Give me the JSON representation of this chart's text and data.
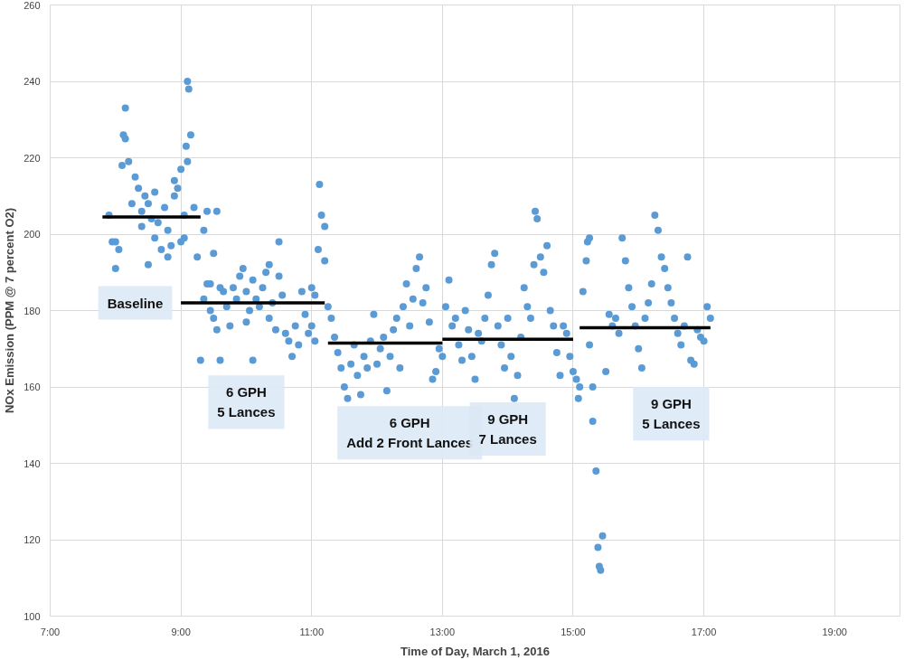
{
  "chart_data": {
    "type": "scatter",
    "xlabel": "Time of Day, March 1, 2016",
    "ylabel": "NOx Emission (PPM @ 7 percent O2)",
    "xlim": [
      7,
      20
    ],
    "ylim": [
      100,
      260
    ],
    "xticks": [
      {
        "value": 7,
        "label": "7:00"
      },
      {
        "value": 9,
        "label": "9:00"
      },
      {
        "value": 11,
        "label": "11:00"
      },
      {
        "value": 13,
        "label": "13:00"
      },
      {
        "value": 15,
        "label": "15:00"
      },
      {
        "value": 17,
        "label": "17:00"
      },
      {
        "value": 19,
        "label": "19:00"
      }
    ],
    "yticks": [
      100,
      120,
      140,
      160,
      180,
      200,
      220,
      240,
      260
    ],
    "grid": true,
    "series": [
      {
        "marker": "circle",
        "color": "#5b9bd5",
        "x": [
          7.9,
          7.95,
          8.0,
          8.0,
          8.05,
          8.1,
          8.12,
          8.15,
          8.15,
          8.2,
          8.25,
          8.3,
          8.35,
          8.4,
          8.4,
          8.45,
          8.5,
          8.5,
          8.55,
          8.6,
          8.6,
          8.65,
          8.7,
          8.75,
          8.8,
          8.8,
          8.85,
          8.9,
          8.9,
          8.95,
          9.0,
          9.0,
          9.05,
          9.05,
          9.08,
          9.1,
          9.1,
          9.12,
          9.15,
          9.2,
          9.25,
          9.3,
          9.35,
          9.4,
          9.45,
          9.5,
          9.55,
          9.6,
          9.35,
          9.4,
          9.45,
          9.5,
          9.55,
          9.6,
          9.65,
          9.7,
          9.75,
          9.8,
          9.85,
          9.9,
          9.95,
          10.0,
          10.0,
          10.05,
          10.1,
          10.1,
          10.15,
          10.2,
          10.25,
          10.3,
          10.35,
          10.35,
          10.4,
          10.45,
          10.5,
          10.5,
          10.55,
          10.6,
          10.65,
          10.7,
          10.75,
          10.8,
          10.85,
          10.9,
          10.95,
          11.0,
          11.05,
          11.1,
          11.12,
          11.15,
          11.2,
          11.2,
          11.05,
          11.0,
          11.25,
          11.3,
          11.35,
          11.4,
          11.45,
          11.5,
          11.55,
          11.6,
          11.65,
          11.7,
          11.75,
          11.8,
          11.85,
          11.9,
          11.95,
          12.0,
          12.05,
          12.1,
          12.15,
          12.2,
          12.25,
          12.3,
          12.35,
          12.4,
          12.45,
          12.5,
          12.55,
          12.6,
          12.65,
          12.7,
          12.75,
          12.8,
          12.85,
          12.9,
          12.95,
          13.0,
          13.05,
          13.1,
          13.15,
          13.2,
          13.25,
          13.3,
          13.35,
          13.4,
          13.45,
          13.5,
          13.55,
          13.6,
          13.65,
          13.7,
          13.75,
          13.8,
          13.85,
          13.9,
          13.95,
          14.0,
          14.05,
          14.1,
          14.15,
          14.2,
          14.25,
          14.3,
          14.35,
          14.4,
          14.42,
          14.45,
          14.5,
          14.55,
          14.6,
          14.65,
          14.7,
          14.75,
          14.8,
          14.85,
          14.9,
          14.95,
          15.0,
          15.05,
          15.08,
          15.1,
          15.15,
          15.2,
          15.22,
          15.25,
          15.25,
          15.3,
          15.3,
          15.35,
          15.38,
          15.4,
          15.42,
          15.45,
          15.5,
          15.55,
          15.6,
          15.65,
          15.7,
          15.75,
          15.8,
          15.85,
          15.9,
          15.95,
          16.0,
          16.05,
          16.1,
          16.15,
          16.2,
          16.25,
          16.3,
          16.35,
          16.4,
          16.45,
          16.5,
          16.55,
          16.6,
          16.65,
          16.7,
          16.75,
          16.8,
          16.85,
          16.9,
          16.95,
          17.0,
          17.05,
          17.1
        ],
        "values": [
          205,
          198,
          191,
          198,
          196,
          218,
          226,
          233,
          225,
          219,
          208,
          215,
          212,
          206,
          202,
          210,
          208,
          192,
          204,
          199,
          211,
          203,
          196,
          207,
          194,
          201,
          197,
          214,
          210,
          212,
          198,
          217,
          205,
          199,
          223,
          219,
          240,
          238,
          226,
          207,
          194,
          167,
          201,
          206,
          187,
          195,
          206,
          186,
          183,
          187,
          180,
          178,
          175,
          167,
          185,
          181,
          176,
          186,
          183,
          189,
          191,
          185,
          177,
          180,
          167,
          188,
          183,
          181,
          186,
          190,
          192,
          178,
          182,
          175,
          198,
          189,
          184,
          174,
          172,
          168,
          176,
          171,
          185,
          179,
          174,
          176,
          184,
          196,
          213,
          205,
          202,
          193,
          172,
          186,
          181,
          178,
          173,
          169,
          165,
          160,
          157,
          166,
          171,
          163,
          158,
          168,
          165,
          172,
          179,
          166,
          170,
          173,
          159,
          168,
          175,
          178,
          165,
          181,
          187,
          176,
          183,
          191,
          194,
          182,
          186,
          177,
          162,
          164,
          170,
          168,
          181,
          188,
          176,
          178,
          171,
          167,
          180,
          175,
          168,
          162,
          174,
          172,
          178,
          184,
          192,
          195,
          176,
          171,
          165,
          178,
          168,
          157,
          163,
          173,
          186,
          181,
          178,
          192,
          206,
          204,
          194,
          190,
          197,
          180,
          176,
          169,
          163,
          176,
          174,
          168,
          164,
          162,
          157,
          160,
          185,
          193,
          198,
          199,
          171,
          160,
          151,
          138,
          118,
          113,
          112,
          121,
          164,
          179,
          176,
          178,
          174,
          199,
          193,
          186,
          181,
          176,
          170,
          165,
          178,
          182,
          187,
          205,
          201,
          194,
          191,
          186,
          182,
          178,
          174,
          171,
          176,
          194,
          167,
          166,
          175,
          173,
          172,
          181,
          178
        ]
      },
      {
        "type": "line",
        "color": "#000000",
        "x": [
          7.8,
          9.3
        ],
        "values": [
          204.5,
          204.5
        ]
      },
      {
        "type": "line",
        "color": "#000000",
        "x": [
          9.0,
          11.2
        ],
        "values": [
          182,
          182
        ]
      },
      {
        "type": "line",
        "color": "#000000",
        "x": [
          11.25,
          13.0
        ],
        "values": [
          171.5,
          171.5
        ]
      },
      {
        "type": "line",
        "color": "#000000",
        "x": [
          13.0,
          15.0
        ],
        "values": [
          172.5,
          172.5
        ]
      },
      {
        "type": "line",
        "color": "#000000",
        "x": [
          15.1,
          17.1
        ],
        "values": [
          175.5,
          175.5
        ]
      }
    ],
    "annotations": [
      "Baseline",
      "6 GPH\n5 Lances",
      "6 GPH\nAdd 2 Front Lances",
      "9 GPH\n7 Lances",
      "9 GPH\n5 Lances"
    ]
  }
}
